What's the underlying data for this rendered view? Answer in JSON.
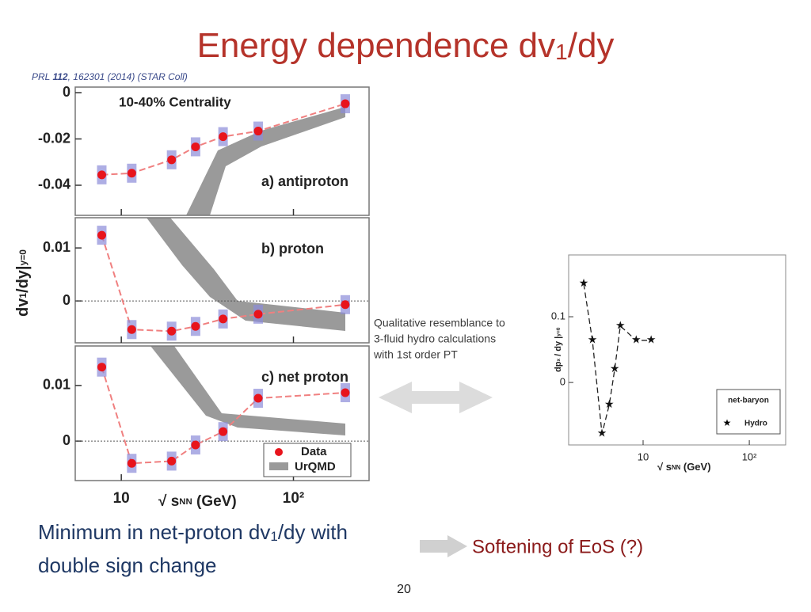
{
  "title": {
    "main": "Energy dependence dv",
    "sub": "1",
    "tail": "/dy"
  },
  "reference": {
    "prefix": "PRL ",
    "volume": "112",
    "rest": ", 162301 (2014) (STAR Coll)"
  },
  "left_figure": {
    "type": "scatter",
    "log_x": true,
    "xlim": [
      5.4,
      275
    ],
    "xticks": [
      10,
      {
        "value": 100,
        "label": "10²"
      }
    ],
    "x_label": {
      "a": "√ s",
      "sub": "NN",
      "b": " (GeV)"
    },
    "y_label": {
      "a": "dv",
      "sub1": "1",
      "b": "/dy|",
      "sub2": "y=0"
    },
    "x": [
      7.7,
      11.5,
      19.6,
      27,
      39,
      62.4,
      200
    ],
    "color": "#e8141c",
    "legend": [
      "Data",
      "UrQMD"
    ],
    "panels": [
      {
        "heading": "10-40% Centrality",
        "label": "a) antiproton",
        "ylim": [
          -0.053,
          0.0024
        ],
        "yticks": [
          0,
          -0.02,
          -0.04
        ],
        "values": [
          -0.0355,
          -0.0348,
          -0.029,
          -0.0234,
          -0.019,
          -0.0166,
          -0.0048
        ]
      },
      {
        "label": "b) proton",
        "ylim": [
          -0.0079,
          0.0157
        ],
        "yticks": [
          0.01,
          0
        ],
        "values": [
          0.0124,
          -0.0054,
          -0.0057,
          -0.0048,
          -0.0034,
          -0.0025,
          -0.0007
        ]
      },
      {
        "label": "c) net proton",
        "ylim": [
          -0.0071,
          0.0171
        ],
        "yticks": [
          0.01,
          0
        ],
        "values": [
          0.0133,
          -0.004,
          -0.0036,
          -0.0007,
          0.0017,
          0.0077,
          0.0087
        ]
      }
    ]
  },
  "annotation": [
    "Qualitative resemblance to",
    "3-fluid hydro calculations",
    "with 1st order PT"
  ],
  "right_figure": {
    "type": "line",
    "log_x": true,
    "xlim": [
      1.99,
      220
    ],
    "ylim": [
      -0.095,
      0.194
    ],
    "xticks": [
      10,
      {
        "value": 100,
        "label": "10²"
      }
    ],
    "yticks": [
      0.1,
      0
    ],
    "x_label": {
      "a": "√ s",
      "sub": "NN",
      "b": " (GeV)"
    },
    "y_label": {
      "a": "dp",
      "sub1": "x",
      "b": " / dy |",
      "sub2": "y=0"
    },
    "legend_title": "net-baryon",
    "series": [
      {
        "name": "Hydro",
        "x": [
          2.76,
          3.33,
          4.1,
          4.8,
          5.4,
          6.1,
          8.6,
          11.9
        ],
        "values": [
          0.15,
          0.064,
          -0.078,
          -0.034,
          0.02,
          0.086,
          0.064,
          0.064
        ]
      }
    ]
  },
  "conclusion": {
    "line1_a": "Minimum in net-proton dv",
    "line1_sub": "1",
    "line1_b": "/dy with",
    "line2": "double sign change",
    "result": "Softening of EoS (?)"
  },
  "page_number": "20"
}
